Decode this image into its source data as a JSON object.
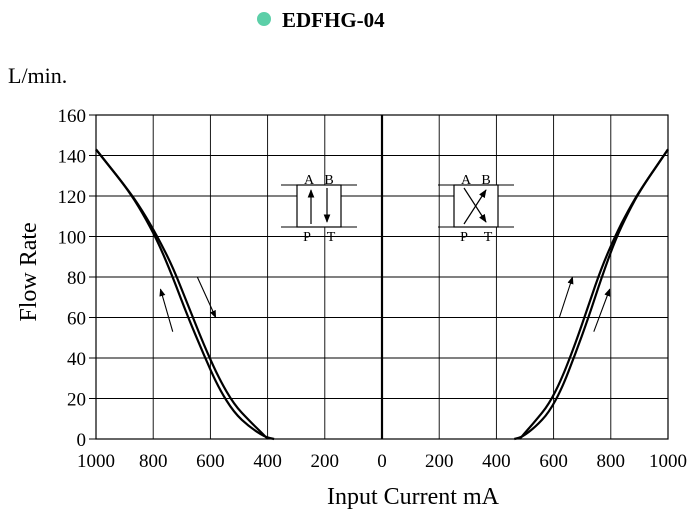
{
  "header": {
    "title": "EDFHG-04",
    "bullet_color": "#5ccfa8"
  },
  "chart_data": {
    "type": "line",
    "title": "EDFHG-04",
    "ylabel": "Flow Rate",
    "yunit": "L/min.",
    "xlabel": "Input Current mA",
    "ylim": [
      0,
      160
    ],
    "yticks": [
      0,
      20,
      40,
      60,
      80,
      100,
      120,
      140,
      160
    ],
    "xticks": [
      "1000",
      "800",
      "600",
      "400",
      "200",
      "0",
      "200",
      "400",
      "600",
      "800",
      "1000"
    ],
    "grid": true,
    "panels": [
      {
        "side": "left",
        "symbol": {
          "ports": [
            "A",
            "B",
            "P",
            "T"
          ]
        },
        "series": [
          {
            "x": [
              1000,
              900,
              850,
              800,
              750,
              700,
              650,
              600,
              550,
              500,
              450,
              420
            ],
            "y": [
              143,
              124,
              112,
              98,
              80,
              60,
              42,
              25,
              13,
              6,
              1,
              0
            ]
          },
          {
            "x": [
              1000,
              900,
              850,
              800,
              750,
              700,
              650,
              600,
              550,
              500,
              460,
              440
            ],
            "y": [
              143,
              124,
              113,
              100,
              85,
              66,
              47,
              30,
              17,
              9,
              3,
              0
            ]
          }
        ]
      },
      {
        "side": "right",
        "symbol": {
          "ports": [
            "A",
            "B",
            "P",
            "T"
          ]
        },
        "series": [
          {
            "x": [
              420,
              450,
              500,
              550,
              600,
              650,
              700,
              750,
              800,
              850,
              900,
              1000
            ],
            "y": [
              0,
              1,
              6,
              13,
              25,
              42,
              60,
              80,
              98,
              112,
              124,
              143
            ]
          },
          {
            "x": [
              440,
              460,
              500,
              550,
              600,
              650,
              700,
              750,
              800,
              850,
              900,
              1000
            ],
            "y": [
              0,
              3,
              9,
              17,
              30,
              47,
              66,
              85,
              100,
              113,
              124,
              143
            ]
          }
        ]
      }
    ]
  }
}
